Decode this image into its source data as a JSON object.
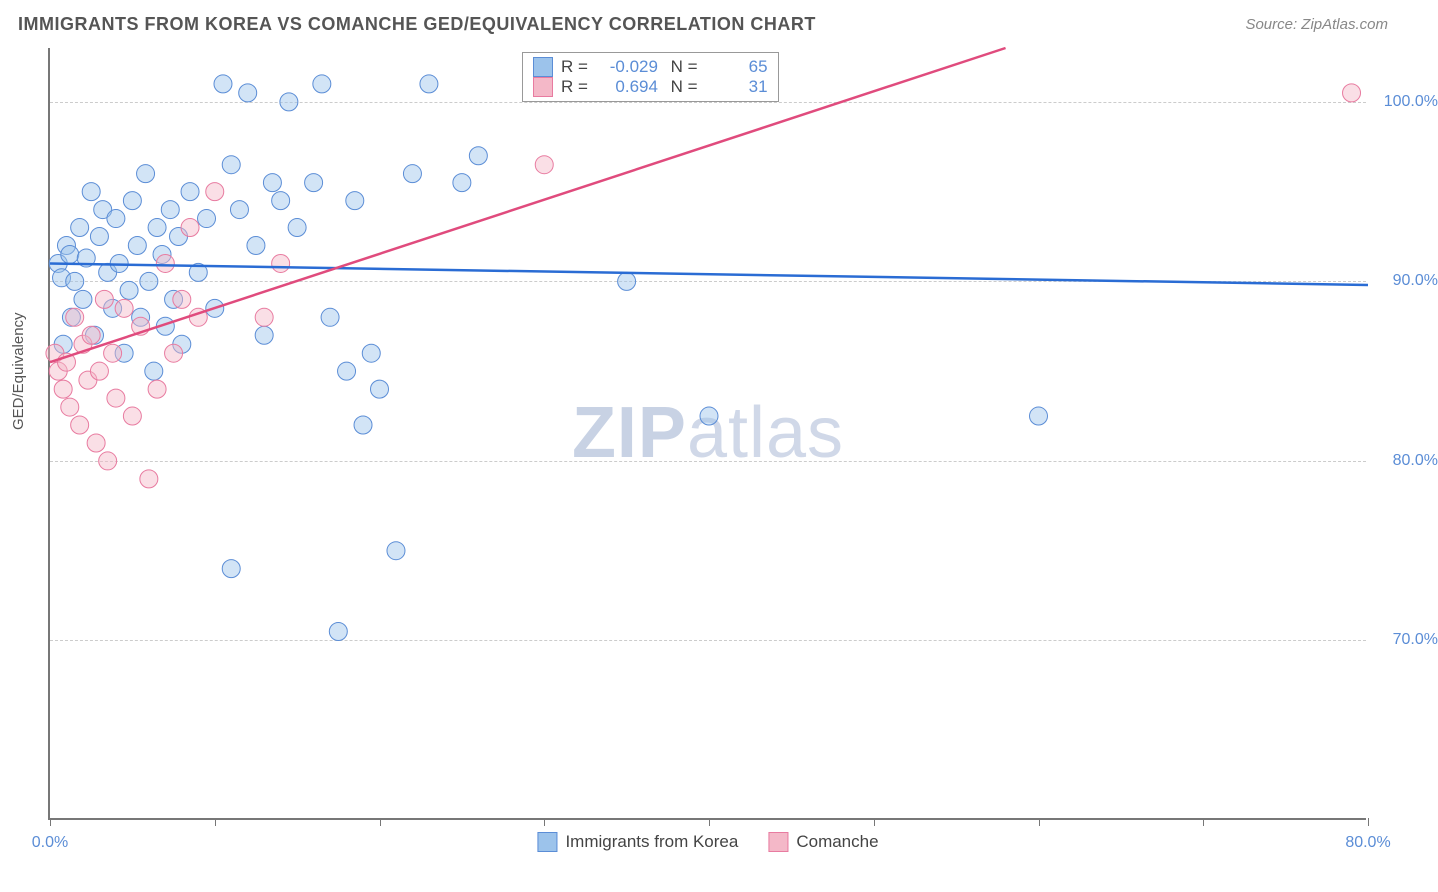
{
  "header": {
    "title": "IMMIGRANTS FROM KOREA VS COMANCHE GED/EQUIVALENCY CORRELATION CHART",
    "source": "Source: ZipAtlas.com"
  },
  "watermark": {
    "bold": "ZIP",
    "light": "atlas"
  },
  "chart": {
    "type": "scatter",
    "background_color": "#ffffff",
    "grid_color": "#cccccc",
    "axis_color": "#777777",
    "ylabel": "GED/Equivalency",
    "xlim": [
      0,
      80
    ],
    "ylim": [
      60,
      103
    ],
    "xticks": [
      0,
      10,
      20,
      30,
      40,
      50,
      60,
      70,
      80
    ],
    "xtick_labels": {
      "0": "0.0%",
      "80": "80.0%"
    },
    "yticks": [
      70,
      80,
      90,
      100
    ],
    "ytick_labels": {
      "70": "70.0%",
      "80": "80.0%",
      "90": "90.0%",
      "100": "100.0%"
    },
    "tick_color": "#5b8dd6",
    "label_fontsize": 15,
    "tick_fontsize": 16,
    "marker_radius": 9,
    "marker_opacity": 0.45,
    "line_width": 2.5,
    "series": [
      {
        "name": "Immigrants from Korea",
        "color_fill": "#9cc3eb",
        "color_stroke": "#5b8dd6",
        "R": "-0.029",
        "N": "65",
        "trend": {
          "x1": 0,
          "y1": 91.0,
          "x2": 80,
          "y2": 89.8,
          "color": "#2a6cd4"
        },
        "points": [
          [
            0.5,
            91
          ],
          [
            0.7,
            90.2
          ],
          [
            0.8,
            86.5
          ],
          [
            1,
            92
          ],
          [
            1.2,
            91.5
          ],
          [
            1.3,
            88
          ],
          [
            1.5,
            90
          ],
          [
            1.8,
            93
          ],
          [
            2,
            89
          ],
          [
            2.2,
            91.3
          ],
          [
            2.5,
            95
          ],
          [
            2.7,
            87
          ],
          [
            3,
            92.5
          ],
          [
            3.2,
            94
          ],
          [
            3.5,
            90.5
          ],
          [
            3.8,
            88.5
          ],
          [
            4,
            93.5
          ],
          [
            4.2,
            91
          ],
          [
            4.5,
            86
          ],
          [
            4.8,
            89.5
          ],
          [
            5,
            94.5
          ],
          [
            5.3,
            92
          ],
          [
            5.5,
            88
          ],
          [
            5.8,
            96
          ],
          [
            6,
            90
          ],
          [
            6.3,
            85
          ],
          [
            6.5,
            93
          ],
          [
            6.8,
            91.5
          ],
          [
            7,
            87.5
          ],
          [
            7.3,
            94
          ],
          [
            7.5,
            89
          ],
          [
            7.8,
            92.5
          ],
          [
            8,
            86.5
          ],
          [
            8.5,
            95
          ],
          [
            9,
            90.5
          ],
          [
            9.5,
            93.5
          ],
          [
            10,
            88.5
          ],
          [
            10.5,
            101
          ],
          [
            11,
            96.5
          ],
          [
            11.5,
            94
          ],
          [
            12,
            100.5
          ],
          [
            12.5,
            92
          ],
          [
            13,
            87
          ],
          [
            13.5,
            95.5
          ],
          [
            14,
            94.5
          ],
          [
            14.5,
            100
          ],
          [
            15,
            93
          ],
          [
            16,
            95.5
          ],
          [
            16.5,
            101
          ],
          [
            17,
            88
          ],
          [
            17.5,
            70.5
          ],
          [
            18,
            85
          ],
          [
            18.5,
            94.5
          ],
          [
            19,
            82
          ],
          [
            19.5,
            86
          ],
          [
            20,
            84
          ],
          [
            21,
            75
          ],
          [
            22,
            96
          ],
          [
            23,
            101
          ],
          [
            25,
            95.5
          ],
          [
            26,
            97
          ],
          [
            35,
            90
          ],
          [
            40,
            82.5
          ],
          [
            60,
            82.5
          ],
          [
            11,
            74
          ]
        ]
      },
      {
        "name": "Comanche",
        "color_fill": "#f4b8c8",
        "color_stroke": "#e87ba0",
        "R": "0.694",
        "N": "31",
        "trend": {
          "x1": 0,
          "y1": 85.5,
          "x2": 58,
          "y2": 103,
          "color": "#e04b7d"
        },
        "points": [
          [
            0.3,
            86
          ],
          [
            0.5,
            85
          ],
          [
            0.8,
            84
          ],
          [
            1,
            85.5
          ],
          [
            1.2,
            83
          ],
          [
            1.5,
            88
          ],
          [
            1.8,
            82
          ],
          [
            2,
            86.5
          ],
          [
            2.3,
            84.5
          ],
          [
            2.5,
            87
          ],
          [
            2.8,
            81
          ],
          [
            3,
            85
          ],
          [
            3.3,
            89
          ],
          [
            3.5,
            80
          ],
          [
            3.8,
            86
          ],
          [
            4,
            83.5
          ],
          [
            4.5,
            88.5
          ],
          [
            5,
            82.5
          ],
          [
            5.5,
            87.5
          ],
          [
            6,
            79
          ],
          [
            6.5,
            84
          ],
          [
            7,
            91
          ],
          [
            7.5,
            86
          ],
          [
            8,
            89
          ],
          [
            8.5,
            93
          ],
          [
            9,
            88
          ],
          [
            10,
            95
          ],
          [
            13,
            88
          ],
          [
            14,
            91
          ],
          [
            30,
            96.5
          ],
          [
            79,
            100.5
          ]
        ]
      }
    ],
    "legend_bottom": [
      {
        "label": "Immigrants from Korea",
        "fill": "#9cc3eb",
        "stroke": "#5b8dd6"
      },
      {
        "label": "Comanche",
        "fill": "#f4b8c8",
        "stroke": "#e87ba0"
      }
    ]
  }
}
